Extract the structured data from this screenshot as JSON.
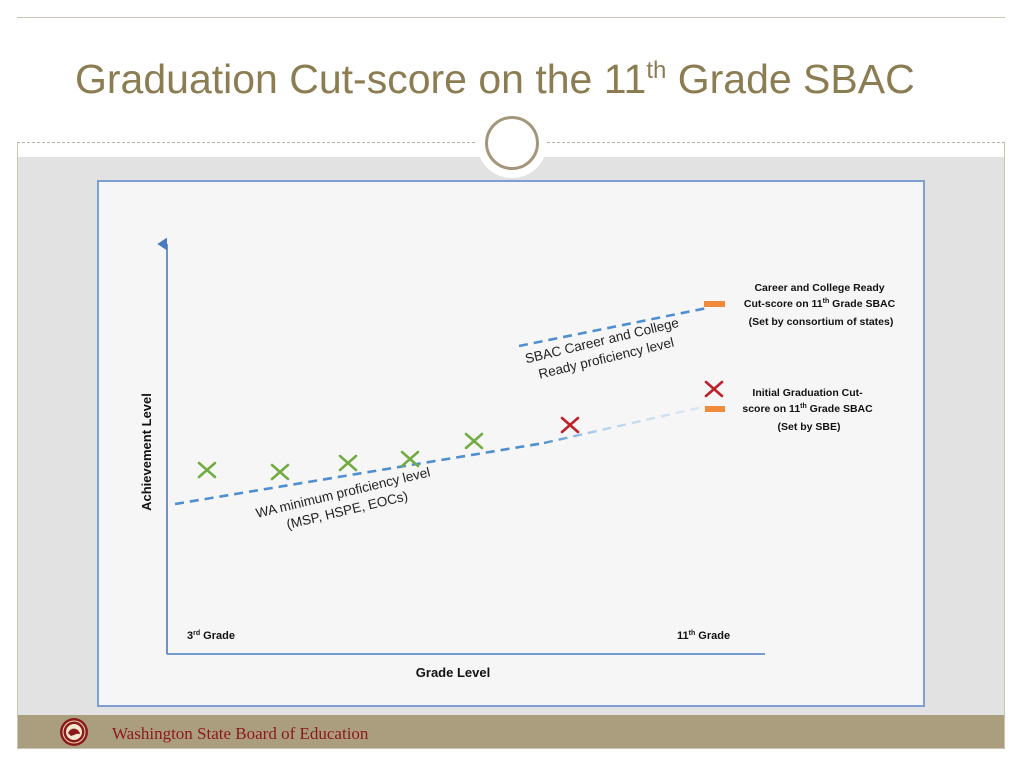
{
  "slide": {
    "title_main": "Graduation Cut-score on the 11",
    "title_sup": "th",
    "title_rest": " Grade SBAC"
  },
  "diagram": {
    "y_axis_label": "Achievement Level",
    "x_axis_label": "Grade Level",
    "grade_start": {
      "num": "3",
      "sup": "rd",
      "rest": " Grade"
    },
    "grade_end": {
      "num": "11",
      "sup": "th",
      "rest": " Grade"
    },
    "wa_label_line1": "WA minimum  proficiency level",
    "wa_label_line2": "(MSP, HSPE, EOCs)",
    "sbac_label_line1": "SBAC Career and College",
    "sbac_label_line2": "Ready proficiency level",
    "ccr_note": {
      "line1": "Career and College Ready",
      "line2_pre": "Cut-score on 11",
      "line2_sup": "th",
      "line2_post": " Grade SBAC",
      "line3": "(Set by consortium of states)"
    },
    "grad_note": {
      "line1": "Initial Graduation Cut-",
      "line2_pre": "score on 11",
      "line2_sup": "th",
      "line2_post": " Grade SBAC",
      "line3": "(Set by SBE)"
    },
    "colors": {
      "axis": "#4a7bbf",
      "dashed_line": "#4f8fd0",
      "fade_line": "#a9cbea",
      "green_mark": "#72ad44",
      "red_mark": "#c0202a",
      "orange_marker": "#ef8b3a"
    }
  },
  "footer": {
    "org_name": "Washington State Board of Education",
    "seal_icon": "wa-state-seal-icon"
  }
}
